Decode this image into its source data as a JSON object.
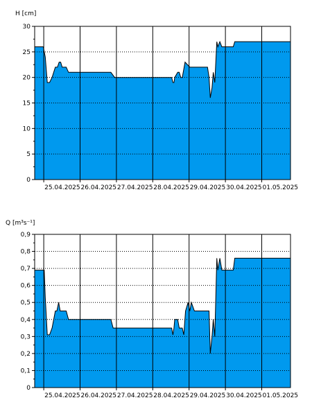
{
  "chart_data": [
    {
      "type": "area",
      "ylabel": "H [cm]",
      "ylim": [
        0,
        30
      ],
      "yticks": [
        0,
        5,
        10,
        15,
        20,
        25,
        30
      ],
      "xlim": [
        "2025-04-24T18:00",
        "2025-05-01T19:00"
      ],
      "xticks": [
        "2025-04-25T00:00",
        "2025-04-26T00:00",
        "2025-04-27T00:00",
        "2025-04-28T00:00",
        "2025-04-29T00:00",
        "2025-04-30T00:00",
        "2025-05-01T00:00"
      ],
      "xtick_labels": [
        "25.04.2025",
        "26.04.2025",
        "27.04.2025",
        "28.04.2025",
        "29.04.2025",
        "30.04.2025",
        "01.05.2025"
      ],
      "grid": {
        "vertical": "solid",
        "horizontal": "dotted"
      },
      "fill_color": "#0099ee",
      "series": [
        {
          "x": [
            "2025-04-24T18:00",
            "2025-04-24T23:40",
            "2025-04-25T01:00",
            "2025-04-25T02:20",
            "2025-04-25T03:50",
            "2025-04-25T05:30",
            "2025-04-25T07:40",
            "2025-04-25T09:00",
            "2025-04-25T10:10",
            "2025-04-25T11:10",
            "2025-04-25T12:10",
            "2025-04-25T14:50",
            "2025-04-25T16:20",
            "2025-04-25T23:50",
            "2025-04-26T19:00",
            "2025-04-26T20:20",
            "2025-04-26T22:50",
            "2025-04-27T23:40",
            "2025-04-28T03:00",
            "2025-04-28T03:40",
            "2025-04-28T05:20",
            "2025-04-28T07:00",
            "2025-04-28T08:50",
            "2025-04-28T10:20",
            "2025-04-28T12:30",
            "2025-04-28T13:20",
            "2025-04-28T14:00",
            "2025-04-28T14:30",
            "2025-04-28T16:30",
            "2025-04-28T17:30",
            "2025-04-28T18:30",
            "2025-04-28T19:30",
            "2025-04-28T21:20",
            "2025-04-29T00:30",
            "2025-04-29T05:20",
            "2025-04-29T06:00",
            "2025-04-29T07:30",
            "2025-04-29T09:00",
            "2025-04-29T10:40",
            "2025-04-29T12:10",
            "2025-04-29T13:10",
            "2025-04-29T14:00",
            "2025-04-29T15:10",
            "2025-04-29T16:00",
            "2025-04-29T17:00",
            "2025-04-29T18:20",
            "2025-04-29T19:00",
            "2025-04-29T20:20",
            "2025-04-29T21:40",
            "2025-04-29T23:30",
            "2025-04-30T05:10",
            "2025-04-30T06:10",
            "2025-04-30T18:00",
            "2025-05-01T19:00"
          ],
          "y": [
            26,
            26,
            24,
            19,
            19,
            20,
            22,
            22,
            23,
            23,
            22,
            22,
            21,
            21,
            21,
            21,
            20,
            20,
            20,
            20,
            20,
            20,
            20,
            20,
            20,
            19,
            19,
            20,
            21,
            21,
            20,
            20,
            23,
            22,
            22,
            22,
            22,
            22,
            22,
            22,
            20,
            16,
            18,
            21,
            19,
            27,
            26,
            27,
            26,
            26,
            26,
            27,
            27,
            27
          ]
        }
      ]
    },
    {
      "type": "area",
      "ylabel": "Q [m³s⁻¹]",
      "ylim": [
        0,
        0.9
      ],
      "yticks": [
        0,
        0.1,
        0.2,
        0.3,
        0.4,
        0.5,
        0.6,
        0.7,
        0.8,
        0.9
      ],
      "ytick_labels": [
        "0",
        "0,1",
        "0,2",
        "0,3",
        "0,4",
        "0,5",
        "0,6",
        "0,7",
        "0,8",
        "0,9"
      ],
      "xlim": [
        "2025-04-24T18:00",
        "2025-05-01T19:00"
      ],
      "xticks": [
        "2025-04-25T00:00",
        "2025-04-26T00:00",
        "2025-04-27T00:00",
        "2025-04-28T00:00",
        "2025-04-29T00:00",
        "2025-04-30T00:00",
        "2025-05-01T00:00"
      ],
      "xtick_labels": [
        "25.04.2025",
        "26.04.2025",
        "27.04.2025",
        "28.04.2025",
        "29.04.2025",
        "30.04.2025",
        "01.05.2025"
      ],
      "grid": {
        "vertical": "solid",
        "horizontal": "dotted"
      },
      "fill_color": "#0099ee",
      "series": [
        {
          "x": [
            "2025-04-24T18:00",
            "2025-04-24T23:40",
            "2025-04-25T00:20",
            "2025-04-25T01:00",
            "2025-04-25T02:20",
            "2025-04-25T03:50",
            "2025-04-25T05:30",
            "2025-04-25T07:40",
            "2025-04-25T08:40",
            "2025-04-25T09:50",
            "2025-04-25T10:50",
            "2025-04-25T12:00",
            "2025-04-25T14:50",
            "2025-04-25T16:20",
            "2025-04-25T23:50",
            "2025-04-26T19:00",
            "2025-04-26T20:20",
            "2025-04-26T21:50",
            "2025-04-27T23:40",
            "2025-04-28T03:00",
            "2025-04-28T04:00",
            "2025-04-28T05:20",
            "2025-04-28T06:40",
            "2025-04-28T08:50",
            "2025-04-28T10:10",
            "2025-04-28T11:30",
            "2025-04-28T12:30",
            "2025-04-28T13:20",
            "2025-04-28T14:00",
            "2025-04-28T14:30",
            "2025-04-28T16:30",
            "2025-04-28T17:30",
            "2025-04-28T18:30",
            "2025-04-28T19:30",
            "2025-04-28T20:30",
            "2025-04-28T21:40",
            "2025-04-28T23:20",
            "2025-04-29T00:30",
            "2025-04-29T01:30",
            "2025-04-29T03:30",
            "2025-04-29T05:20",
            "2025-04-29T07:00",
            "2025-04-29T09:00",
            "2025-04-29T11:20",
            "2025-04-29T13:10",
            "2025-04-29T14:00",
            "2025-04-29T15:10",
            "2025-04-29T16:00",
            "2025-04-29T17:00",
            "2025-04-29T18:20",
            "2025-04-29T19:00",
            "2025-04-29T20:20",
            "2025-04-29T21:40",
            "2025-04-29T23:30",
            "2025-04-30T05:10",
            "2025-04-30T06:10",
            "2025-04-30T18:00",
            "2025-05-01T19:00"
          ],
          "y": [
            0.69,
            0.69,
            0.69,
            0.53,
            0.31,
            0.31,
            0.35,
            0.45,
            0.45,
            0.5,
            0.45,
            0.45,
            0.45,
            0.4,
            0.4,
            0.4,
            0.4,
            0.35,
            0.35,
            0.35,
            0.35,
            0.35,
            0.35,
            0.35,
            0.35,
            0.35,
            0.35,
            0.31,
            0.35,
            0.4,
            0.4,
            0.35,
            0.35,
            0.35,
            0.31,
            0.45,
            0.5,
            0.45,
            0.5,
            0.45,
            0.45,
            0.45,
            0.45,
            0.45,
            0.45,
            0.2,
            0.3,
            0.4,
            0.3,
            0.76,
            0.69,
            0.76,
            0.69,
            0.69,
            0.69,
            0.76,
            0.76,
            0.76
          ]
        }
      ]
    }
  ]
}
